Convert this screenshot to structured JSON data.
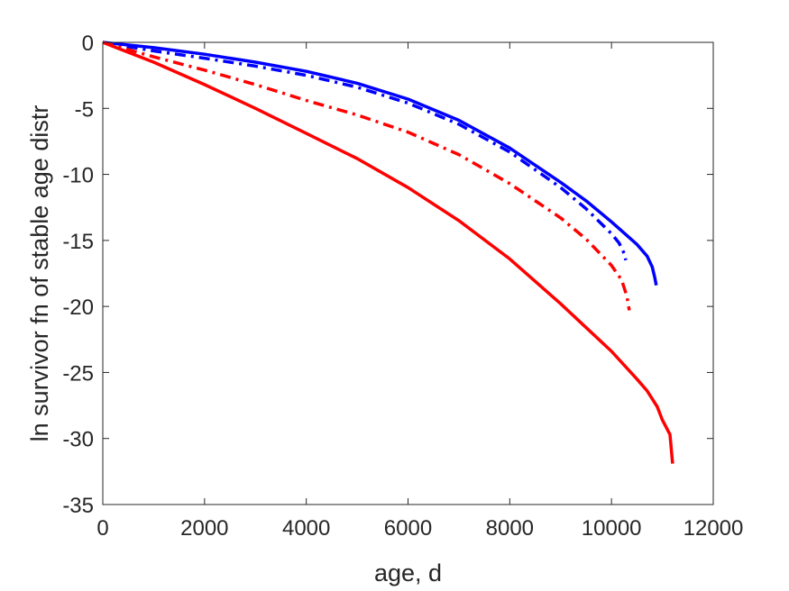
{
  "chart_data": {
    "type": "line",
    "title": "",
    "xlabel": "age, d",
    "ylabel": "ln survivor fn of stable age distr",
    "xlim": [
      0,
      12000
    ],
    "ylim": [
      -35,
      0
    ],
    "xticks": [
      "0",
      "2000",
      "4000",
      "6000",
      "8000",
      "10000",
      "12000"
    ],
    "yticks": [
      "0",
      "-5",
      "-10",
      "-15",
      "-20",
      "-25",
      "-30",
      "-35"
    ],
    "grid": false,
    "legend": "none",
    "series": [
      {
        "color": "#0000ff",
        "style": "solid",
        "x": [
          0,
          1000,
          2000,
          3000,
          4000,
          5000,
          6000,
          7000,
          8000,
          9000,
          9500,
          10000,
          10500,
          10700,
          10800,
          10850,
          10880
        ],
        "y": [
          0,
          -0.4,
          -0.9,
          -1.5,
          -2.2,
          -3.1,
          -4.3,
          -5.9,
          -8.0,
          -10.6,
          -12.0,
          -13.6,
          -15.3,
          -16.2,
          -17.0,
          -17.8,
          -18.4
        ]
      },
      {
        "color": "#0000ff",
        "style": "dashdot",
        "x": [
          0,
          1000,
          2000,
          3000,
          4000,
          5000,
          6000,
          7000,
          8000,
          9000,
          9500,
          10000,
          10150,
          10250,
          10280
        ],
        "y": [
          0,
          -0.65,
          -1.2,
          -1.8,
          -2.5,
          -3.4,
          -4.6,
          -6.2,
          -8.3,
          -11.0,
          -12.6,
          -14.5,
          -15.2,
          -16.0,
          -16.5
        ]
      },
      {
        "color": "#ff0000",
        "style": "dashdot",
        "x": [
          0,
          1000,
          2000,
          3000,
          4000,
          5000,
          6000,
          7000,
          8000,
          9000,
          9500,
          10000,
          10200,
          10300,
          10350
        ],
        "y": [
          0,
          -1.1,
          -2.1,
          -3.2,
          -4.4,
          -5.5,
          -6.8,
          -8.5,
          -10.7,
          -13.3,
          -14.9,
          -16.9,
          -18.0,
          -19.2,
          -20.3
        ]
      },
      {
        "color": "#ff0000",
        "style": "solid",
        "x": [
          0,
          1000,
          2000,
          3000,
          4000,
          5000,
          6000,
          7000,
          8000,
          9000,
          10000,
          10500,
          10700,
          10800,
          10900,
          11000,
          11150,
          11200
        ],
        "y": [
          0,
          -1.5,
          -3.2,
          -5.0,
          -6.9,
          -8.8,
          -11.0,
          -13.5,
          -16.4,
          -19.8,
          -23.4,
          -25.5,
          -26.4,
          -27.0,
          -27.6,
          -28.6,
          -29.7,
          -31.9
        ]
      }
    ]
  }
}
